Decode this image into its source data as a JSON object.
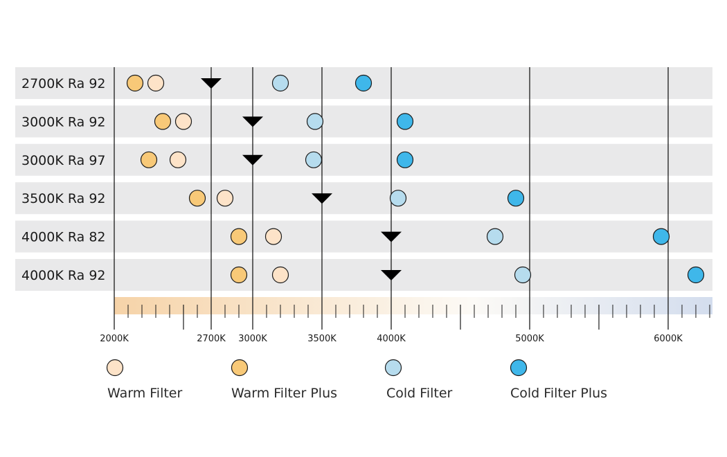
{
  "chart_data": {
    "type": "scatter",
    "xlabel": "",
    "ylabel": "",
    "xlim": [
      2000,
      6300
    ],
    "rows": [
      {
        "label": "2700K Ra 92",
        "nominal": 2700,
        "warm_filter_plus": 2150,
        "warm_filter": 2300,
        "cold_filter": 3200,
        "cold_filter_plus": 3800
      },
      {
        "label": "3000K Ra 92",
        "nominal": 3000,
        "warm_filter_plus": 2350,
        "warm_filter": 2500,
        "cold_filter": 3450,
        "cold_filter_plus": 4100
      },
      {
        "label": "3000K Ra 97",
        "nominal": 3000,
        "warm_filter_plus": 2250,
        "warm_filter": 2460,
        "cold_filter": 3440,
        "cold_filter_plus": 4100
      },
      {
        "label": "3500K Ra 92",
        "nominal": 3500,
        "warm_filter_plus": 2600,
        "warm_filter": 2800,
        "cold_filter": 4050,
        "cold_filter_plus": 4900
      },
      {
        "label": "4000K Ra 82",
        "nominal": 4000,
        "warm_filter_plus": 2900,
        "warm_filter": 3150,
        "cold_filter": 4750,
        "cold_filter_plus": 5950
      },
      {
        "label": "4000K Ra 92",
        "nominal": 4000,
        "warm_filter_plus": 2900,
        "warm_filter": 3200,
        "cold_filter": 4950,
        "cold_filter_plus": 6200
      }
    ],
    "major_ticks": [
      {
        "value": 2000,
        "label": "2000K"
      },
      {
        "value": 2700,
        "label": "2700K"
      },
      {
        "value": 3000,
        "label": "3000K"
      },
      {
        "value": 3500,
        "label": "3500K"
      },
      {
        "value": 4000,
        "label": "4000K"
      },
      {
        "value": 5000,
        "label": "5000K"
      },
      {
        "value": 6000,
        "label": "6000K"
      }
    ],
    "minor_tick_step": 100,
    "mid_tick_values": [
      2500,
      4500,
      5500
    ],
    "reference_lines": [
      2000,
      2700,
      3000,
      3500,
      4000,
      5000,
      6000
    ],
    "legend": [
      {
        "key": "warm_filter",
        "label": "Warm Filter",
        "color": "#fde3c8"
      },
      {
        "key": "warm_filter_plus",
        "label": "Warm Filter Plus",
        "color": "#f8c978"
      },
      {
        "key": "cold_filter",
        "label": "Cold Filter",
        "color": "#b6dcee"
      },
      {
        "key": "cold_filter_plus",
        "label": "Cold Filter Plus",
        "color": "#3fb7ea"
      }
    ],
    "colors": {
      "row_band": "#e9e9ea",
      "marker_outline": "#1a1a1a",
      "nominal_marker": "#000000",
      "gradient_warm": "#f6d3a8",
      "gradient_mid": "#fcfaf6",
      "gradient_cool": "#d3ddee"
    }
  }
}
